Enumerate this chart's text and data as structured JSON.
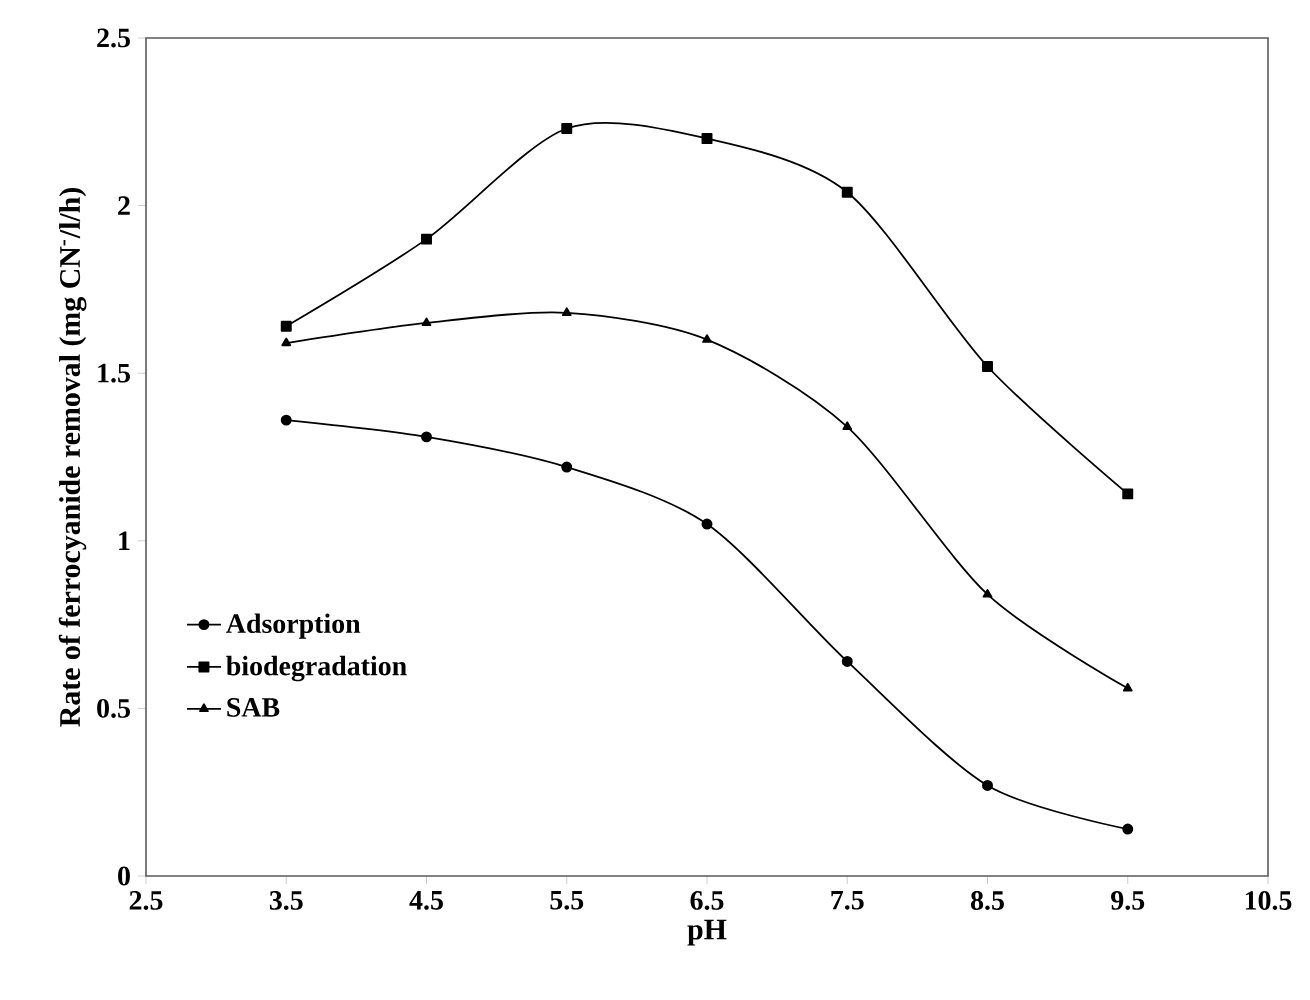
{
  "chart_data": {
    "type": "line",
    "xlabel": "pH",
    "ylabel": "Rate of ferrocyanide removal (mg CN$^{-}$/l/h)",
    "x": [
      3.5,
      4.5,
      5.5,
      6.5,
      7.5,
      8.5,
      9.5
    ],
    "series": [
      {
        "name": "Adsorption",
        "color": "#000000",
        "marker": "circle",
        "values": [
          1.36,
          1.31,
          1.22,
          1.05,
          0.64,
          0.27,
          0.14
        ]
      },
      {
        "name": "biodegradation",
        "color": "#000000",
        "marker": "square",
        "values": [
          1.64,
          1.9,
          2.23,
          2.2,
          2.04,
          1.52,
          1.14
        ]
      },
      {
        "name": "SAB",
        "color": "#000000",
        "marker": "triangle",
        "values": [
          1.59,
          1.65,
          1.68,
          1.6,
          1.34,
          0.84,
          0.56
        ]
      }
    ],
    "xlim": [
      2.5,
      10.5
    ],
    "xticks": [
      2.5,
      3.5,
      4.5,
      5.5,
      6.5,
      7.5,
      8.5,
      9.5,
      10.5
    ],
    "ylim": [
      0,
      2.5
    ],
    "yticks": [
      0,
      0.5,
      1,
      1.5,
      2,
      2.5
    ],
    "grid": false,
    "legend": "left",
    "line_style": "solid"
  }
}
